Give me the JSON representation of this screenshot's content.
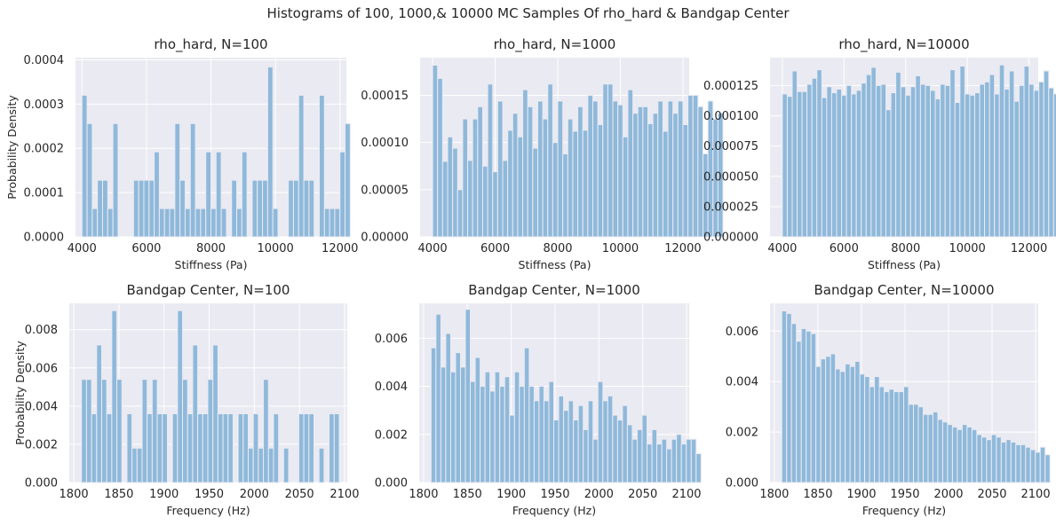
{
  "figure": {
    "suptitle": "Histograms of 100, 1000,& 10000 MC Samples Of rho_hard & Bandgap Center"
  },
  "style": {
    "background": "#eaeaf2",
    "bar_color": "#8fb9da",
    "grid_color": "#ffffff",
    "text_color": "#262626"
  },
  "chart_data": [
    {
      "type": "bar",
      "title": "rho_hard, N=100",
      "xlabel": "Stiffness (Pa)",
      "ylabel": "Probability Density",
      "xlim": [
        3800,
        12200
      ],
      "ylim": [
        0,
        0.000405
      ],
      "xticks": [
        4000,
        6000,
        8000,
        10000,
        12000
      ],
      "xtick_labels": [
        "4000",
        "6000",
        "8000",
        "10000",
        "12000"
      ],
      "yticks": [
        0,
        0.0001,
        0.0002,
        0.0003,
        0.0004
      ],
      "ytick_labels": [
        "0.0000",
        "0.0001",
        "0.0002",
        "0.0003",
        "0.0004"
      ],
      "bin_start": 4000,
      "bin_width": 160,
      "values": [
        0.00032,
        0.000256,
        6.4e-05,
        0.000128,
        0.000128,
        6.4e-05,
        0.000256,
        0,
        0,
        0,
        0.000128,
        0.000128,
        0.000128,
        0.000128,
        0.000192,
        6.4e-05,
        6.4e-05,
        6.4e-05,
        0.000256,
        0.000128,
        6.4e-05,
        0.000256,
        6.4e-05,
        6.4e-05,
        0.000192,
        6.4e-05,
        0.000192,
        6.4e-05,
        0,
        0.000128,
        6.4e-05,
        0.000192,
        0,
        0.000128,
        0.000128,
        0.000128,
        0.000384,
        6.4e-05,
        0,
        0,
        0.000128,
        0.000128,
        0.00032,
        0.000128,
        0.000128,
        0,
        0.00032,
        6.4e-05,
        6.4e-05,
        6.4e-05,
        0.000192,
        0.000256
      ]
    },
    {
      "type": "bar",
      "title": "rho_hard, N=1000",
      "xlabel": "Stiffness (Pa)",
      "ylabel": "",
      "xlim": [
        3600,
        12200
      ],
      "ylim": [
        0,
        0.00019
      ],
      "xticks": [
        4000,
        6000,
        8000,
        10000,
        12000
      ],
      "xtick_labels": [
        "4000",
        "6000",
        "8000",
        "10000",
        "12000"
      ],
      "yticks": [
        0,
        5e-05,
        0.0001,
        0.00015
      ],
      "ytick_labels": [
        "0.00000",
        "0.00005",
        "0.00010",
        "0.00015"
      ],
      "bin_start": 4000,
      "bin_width": 160,
      "values": [
        0.000182,
        0.000168,
        8e-05,
        0.000106,
        9.4e-05,
        5e-05,
        0.000125,
        8.1e-05,
        0.000125,
        0.000138,
        7.5e-05,
        0.000162,
        6.9e-05,
        0.000144,
        8.1e-05,
        0.000113,
        0.000131,
        0.000106,
        0.000156,
        0.000138,
        9.4e-05,
        0.000144,
        0.000125,
        0.000162,
        0.0001,
        0.000144,
        8.8e-05,
        0.000125,
        0.000112,
        0.000138,
        0.000113,
        0.00015,
        0.000144,
        0.000119,
        0.000162,
        0.000162,
        0.000144,
        0.00014,
        0.000106,
        0.000156,
        0.000131,
        0.000138,
        0.000138,
        0.00012,
        0.000131,
        0.000144,
        0.000112,
        0.000144,
        0.000131,
        0.000144,
        0.000119,
        0.00015,
        0.00015,
        0.000138,
        8.8e-05,
        0.000144,
        0.000125,
        0.000131
      ]
    },
    {
      "type": "bar",
      "title": "rho_hard, N=10000",
      "xlabel": "Stiffness (Pa)",
      "ylabel": "",
      "xlim": [
        3600,
        12300
      ],
      "ylim": [
        0,
        0.000148
      ],
      "xticks": [
        4000,
        6000,
        8000,
        10000,
        12000
      ],
      "xtick_labels": [
        "4000",
        "6000",
        "8000",
        "10000",
        "12000"
      ],
      "yticks": [
        0,
        2.5e-05,
        5e-05,
        7.5e-05,
        0.0001,
        0.000125
      ],
      "ytick_labels": [
        "0.000000",
        "0.000025",
        "0.000050",
        "0.000075",
        "0.000100",
        "0.000125"
      ],
      "bin_start": 4000,
      "bin_width": 160,
      "values": [
        0.000118,
        0.000116,
        0.000137,
        0.00012,
        0.00012,
        0.000126,
        0.000131,
        0.000138,
        0.000115,
        0.000124,
        0.000119,
        0.000122,
        0.000117,
        0.000125,
        0.000118,
        0.000121,
        0.000127,
        0.000134,
        0.00014,
        0.000125,
        0.000126,
        0.000105,
        0.000119,
        0.000136,
        0.000124,
        0.000117,
        0.000124,
        0.000133,
        0.000126,
        0.000125,
        0.000121,
        0.000114,
        0.000126,
        0.000125,
        0.000138,
        0.000111,
        0.000141,
        0.000118,
        0.000117,
        0.000119,
        0.000126,
        0.000128,
        0.000134,
        0.000118,
        0.000142,
        0.000122,
        0.000137,
        0.000112,
        0.000125,
        0.000141,
        0.000126,
        0.000121,
        0.000128,
        0.000137,
        0.000123,
        0.000118,
        0.000129,
        0.000108
      ]
    },
    {
      "type": "bar",
      "title": "Bandgap Center, N=100",
      "xlabel": "Frequency (Hz)",
      "ylabel": "Probability Density",
      "xlim": [
        1795,
        2103
      ],
      "ylim": [
        0,
        0.00938
      ],
      "xticks": [
        1800,
        1850,
        1900,
        1950,
        2000,
        2050,
        2100
      ],
      "xtick_labels": [
        "1800",
        "1850",
        "1900",
        "1950",
        "2000",
        "2050",
        "2100"
      ],
      "yticks": [
        0,
        0.002,
        0.004,
        0.006,
        0.008
      ],
      "ytick_labels": [
        "0.000",
        "0.002",
        "0.004",
        "0.006",
        "0.008"
      ],
      "bin_start": 1808.5,
      "bin_width": 5.6,
      "values": [
        0.0054,
        0.0054,
        0.0036,
        0.0072,
        0.0054,
        0.0036,
        0.009,
        0.0054,
        0,
        0.0036,
        0.0018,
        0.0018,
        0.0054,
        0.0036,
        0.0054,
        0.0036,
        0.0036,
        0,
        0.0036,
        0.009,
        0.0054,
        0.0036,
        0.0072,
        0.0036,
        0.0036,
        0.0054,
        0.0072,
        0.0036,
        0.0036,
        0.0036,
        0,
        0.0036,
        0.0036,
        0.0018,
        0.0036,
        0.0018,
        0.0054,
        0.0018,
        0.0036,
        0,
        0.0018,
        0,
        0,
        0.0036,
        0.0036,
        0.0036,
        0,
        0.0018,
        0,
        0.0036,
        0.0036
      ]
    },
    {
      "type": "bar",
      "title": "Bandgap Center, N=1000",
      "xlabel": "Frequency (Hz)",
      "ylabel": "",
      "xlim": [
        1795,
        2103
      ],
      "ylim": [
        0,
        0.00745
      ],
      "xticks": [
        1800,
        1850,
        1900,
        1950,
        2000,
        2050,
        2100
      ],
      "xtick_labels": [
        "1800",
        "1850",
        "1900",
        "1950",
        "2000",
        "2050",
        "2100"
      ],
      "yticks": [
        0,
        0.002,
        0.004,
        0.006
      ],
      "ytick_labels": [
        "0.000",
        "0.002",
        "0.004",
        "0.006"
      ],
      "bin_start": 1808.5,
      "bin_width": 5.6,
      "values": [
        0.0056,
        0.007,
        0.0048,
        0.0062,
        0.0046,
        0.0054,
        0.0048,
        0.0072,
        0.0042,
        0.0052,
        0.004,
        0.0046,
        0.0038,
        0.0046,
        0.004,
        0.0044,
        0.0028,
        0.0046,
        0.004,
        0.0056,
        0.004,
        0.0034,
        0.004,
        0.0034,
        0.0042,
        0.0026,
        0.0036,
        0.003,
        0.0034,
        0.0026,
        0.0032,
        0.0022,
        0.0034,
        0.0018,
        0.0042,
        0.0034,
        0.0036,
        0.0028,
        0.0026,
        0.0032,
        0.0024,
        0.0018,
        0.0022,
        0.0028,
        0.0016,
        0.0022,
        0.0016,
        0.0018,
        0.0014,
        0.0018,
        0.002,
        0.0016,
        0.0018,
        0.0018,
        0.0012
      ]
    },
    {
      "type": "bar",
      "title": "Bandgap Center, N=10000",
      "xlabel": "Frequency (Hz)",
      "ylabel": "",
      "xlim": [
        1795,
        2103
      ],
      "ylim": [
        0,
        0.0071
      ],
      "xticks": [
        1800,
        1850,
        1900,
        1950,
        2000,
        2050,
        2100
      ],
      "xtick_labels": [
        "1800",
        "1850",
        "1900",
        "1950",
        "2000",
        "2050",
        "2100"
      ],
      "yticks": [
        0,
        0.002,
        0.004,
        0.006
      ],
      "ytick_labels": [
        "0.000",
        "0.002",
        "0.004",
        "0.006"
      ],
      "bin_start": 1808.5,
      "bin_width": 5.6,
      "values": [
        0.0068,
        0.0067,
        0.0063,
        0.0056,
        0.0061,
        0.006,
        0.0059,
        0.0046,
        0.0049,
        0.005,
        0.0051,
        0.0045,
        0.0044,
        0.0047,
        0.0046,
        0.0048,
        0.0043,
        0.0042,
        0.0038,
        0.0042,
        0.0038,
        0.0036,
        0.0037,
        0.0036,
        0.0036,
        0.0038,
        0.0031,
        0.0031,
        0.003,
        0.0027,
        0.0027,
        0.0028,
        0.0025,
        0.0024,
        0.0023,
        0.0022,
        0.0021,
        0.0023,
        0.0022,
        0.0021,
        0.0019,
        0.0018,
        0.0017,
        0.0019,
        0.0018,
        0.0016,
        0.0017,
        0.0016,
        0.0015,
        0.0015,
        0.0014,
        0.0013,
        0.0012,
        0.0014,
        0.0011
      ]
    }
  ]
}
